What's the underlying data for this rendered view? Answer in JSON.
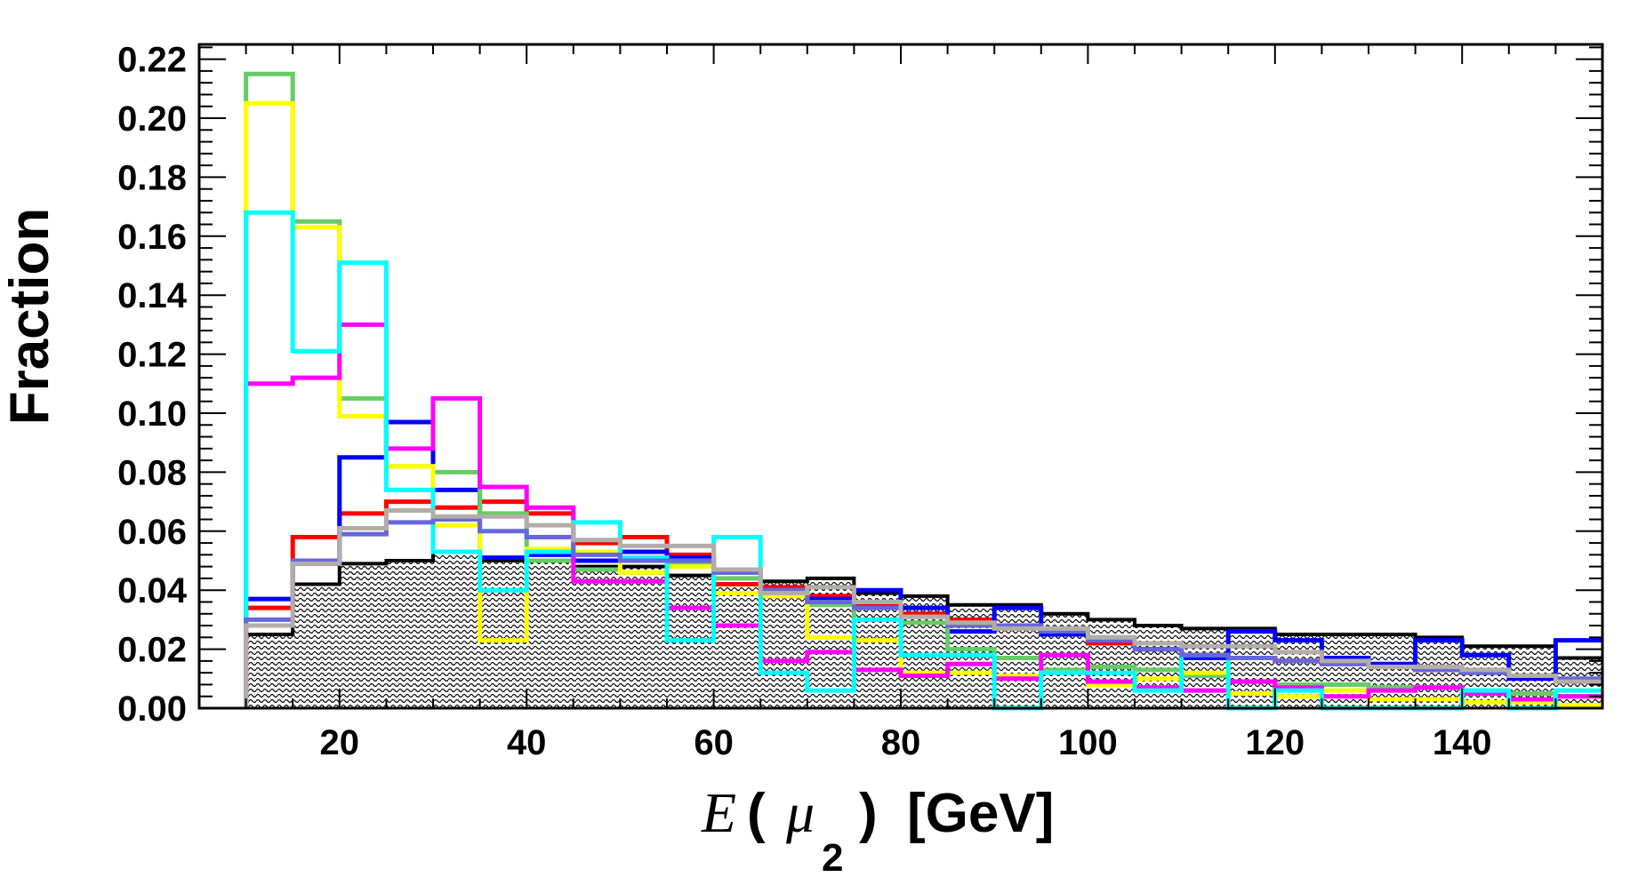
{
  "chart_data": {
    "type": "histogram-step",
    "ylabel": "Fraction",
    "xlabel": {
      "var": "E",
      "open": "(",
      "particle": "μ",
      "subscript": "2",
      "close": ")",
      "unit": "[GeV]"
    },
    "xlim": [
      5,
      155
    ],
    "ylim": [
      0,
      0.225
    ],
    "x_ticks": [
      20,
      40,
      60,
      80,
      100,
      120,
      140
    ],
    "y_ticks": [
      "0.00",
      "0.02",
      "0.04",
      "0.06",
      "0.08",
      "0.10",
      "0.12",
      "0.14",
      "0.16",
      "0.18",
      "0.20",
      "0.22"
    ],
    "bin_edges": [
      10,
      15,
      20,
      25,
      30,
      35,
      40,
      45,
      50,
      55,
      60,
      65,
      70,
      75,
      80,
      85,
      90,
      95,
      100,
      105,
      110,
      115,
      120,
      125,
      130,
      135,
      140,
      145,
      150,
      155
    ],
    "background": {
      "style": "hatched",
      "line_color": "#000000",
      "values": [
        0.025,
        0.042,
        0.049,
        0.05,
        0.053,
        0.05,
        0.05,
        0.048,
        0.048,
        0.045,
        0.044,
        0.043,
        0.044,
        0.039,
        0.038,
        0.035,
        0.035,
        0.032,
        0.03,
        0.028,
        0.027,
        0.027,
        0.025,
        0.025,
        0.025,
        0.024,
        0.021,
        0.021,
        0.017
      ]
    },
    "series": [
      {
        "color": "#ff0000",
        "values": [
          0.034,
          0.058,
          0.066,
          0.07,
          0.068,
          0.07,
          0.066,
          0.056,
          0.058,
          0.052,
          0.042,
          0.041,
          0.038,
          0.035,
          0.032,
          0.03,
          0.028,
          0.025,
          0.022,
          0.02,
          0.018,
          0.017,
          0.016,
          0.015,
          0.014,
          0.013,
          0.012,
          0.011,
          0.009
        ]
      },
      {
        "color": "#0000ff",
        "values": [
          0.037,
          0.049,
          0.085,
          0.097,
          0.074,
          0.051,
          0.052,
          0.05,
          0.053,
          0.051,
          0.046,
          0.04,
          0.037,
          0.04,
          0.034,
          0.026,
          0.034,
          0.025,
          0.024,
          0.02,
          0.017,
          0.026,
          0.023,
          0.017,
          0.015,
          0.023,
          0.018,
          0.01,
          0.023
        ]
      },
      {
        "color": "#66cc66",
        "values": [
          0.215,
          0.165,
          0.105,
          0.082,
          0.08,
          0.066,
          0.05,
          0.047,
          0.046,
          0.049,
          0.044,
          0.04,
          0.035,
          0.03,
          0.029,
          0.02,
          0.017,
          0.013,
          0.014,
          0.013,
          0.011,
          0.009,
          0.008,
          0.008,
          0.007,
          0.007,
          0.006,
          0.005,
          0.004
        ]
      },
      {
        "color": "#ffff00",
        "values": [
          0.205,
          0.163,
          0.099,
          0.082,
          0.062,
          0.023,
          0.054,
          0.053,
          0.046,
          0.048,
          0.039,
          0.038,
          0.024,
          0.023,
          0.012,
          0.012,
          0.011,
          0.012,
          0.008,
          0.01,
          0.012,
          0.005,
          0.004,
          0.006,
          0.003,
          0.003,
          0.002,
          0.002,
          0.001
        ]
      },
      {
        "color": "#ff00ff",
        "values": [
          0.11,
          0.112,
          0.13,
          0.088,
          0.105,
          0.075,
          0.068,
          0.043,
          0.043,
          0.034,
          0.028,
          0.016,
          0.019,
          0.013,
          0.011,
          0.015,
          0.01,
          0.018,
          0.009,
          0.007,
          0.006,
          0.009,
          0.007,
          0.004,
          0.006,
          0.007,
          0.005,
          0.003,
          0.004
        ]
      },
      {
        "color": "#00ffff",
        "values": [
          0.168,
          0.121,
          0.151,
          0.074,
          0.053,
          0.04,
          0.053,
          0.063,
          0.051,
          0.023,
          0.058,
          0.012,
          0.006,
          0.03,
          0.018,
          0.018,
          0.0,
          0.012,
          0.012,
          0.006,
          0.018,
          0.0,
          0.006,
          0.0,
          0.0,
          0.0,
          0.006,
          0.0,
          0.006
        ]
      },
      {
        "color": "#6666dd",
        "values": [
          0.03,
          0.05,
          0.059,
          0.063,
          0.064,
          0.06,
          0.058,
          0.052,
          0.05,
          0.05,
          0.046,
          0.04,
          0.036,
          0.034,
          0.031,
          0.028,
          0.028,
          0.026,
          0.023,
          0.02,
          0.018,
          0.017,
          0.016,
          0.015,
          0.014,
          0.013,
          0.012,
          0.011,
          0.01
        ]
      },
      {
        "color": "#b4aca6",
        "values": [
          0.028,
          0.049,
          0.061,
          0.067,
          0.065,
          0.065,
          0.062,
          0.057,
          0.055,
          0.055,
          0.047,
          0.039,
          0.041,
          0.036,
          0.031,
          0.029,
          0.027,
          0.027,
          0.024,
          0.022,
          0.021,
          0.021,
          0.019,
          0.016,
          0.014,
          0.014,
          0.013,
          0.011,
          0.009
        ]
      }
    ]
  }
}
